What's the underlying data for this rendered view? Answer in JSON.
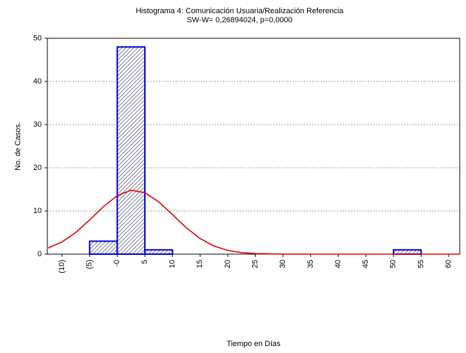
{
  "chart_data": {
    "type": "histogram",
    "title": "Histograma 4: Comunicación Usuaria/Realización Referencia",
    "subtitle": "SW-W= 0,26894024, p=0,0000",
    "xlabel": "Tiempo en Días",
    "ylabel": "No. de Casos.",
    "bins": [
      -10,
      -5,
      0,
      5,
      10,
      15,
      20,
      25,
      30,
      35,
      40,
      45,
      50,
      55,
      60
    ],
    "values": [
      0,
      3,
      48,
      1,
      0,
      0,
      0,
      0,
      0,
      0,
      0,
      0,
      1,
      0
    ],
    "color": "#0000cc",
    "xlim": [
      -12.65,
      62
    ],
    "ylim": [
      0,
      50
    ],
    "xticks": [
      {
        "value": -10,
        "label": "(10)"
      },
      {
        "value": -5,
        "label": "(5)"
      },
      {
        "value": 0,
        "label": "-0"
      },
      5,
      10,
      15,
      20,
      25,
      30,
      35,
      40,
      45,
      50,
      55,
      60
    ],
    "yticks": [
      0,
      10,
      20,
      30,
      40,
      50
    ],
    "grid": true,
    "curve": {
      "color": "#e00000",
      "x": [
        -12.5,
        -10,
        -7.5,
        -5,
        -2.5,
        0,
        2.5,
        5,
        7.5,
        10,
        12.5,
        15,
        17.5,
        20,
        22.5,
        25,
        30,
        35,
        40,
        50,
        60,
        62
      ],
      "values": [
        1.4,
        2.82,
        5.02,
        7.91,
        11.0,
        13.55,
        14.8,
        14.23,
        12.13,
        9.16,
        6.11,
        3.61,
        1.88,
        0.87,
        0.36,
        0.13,
        0.01,
        0,
        0,
        0,
        0,
        0
      ]
    }
  }
}
